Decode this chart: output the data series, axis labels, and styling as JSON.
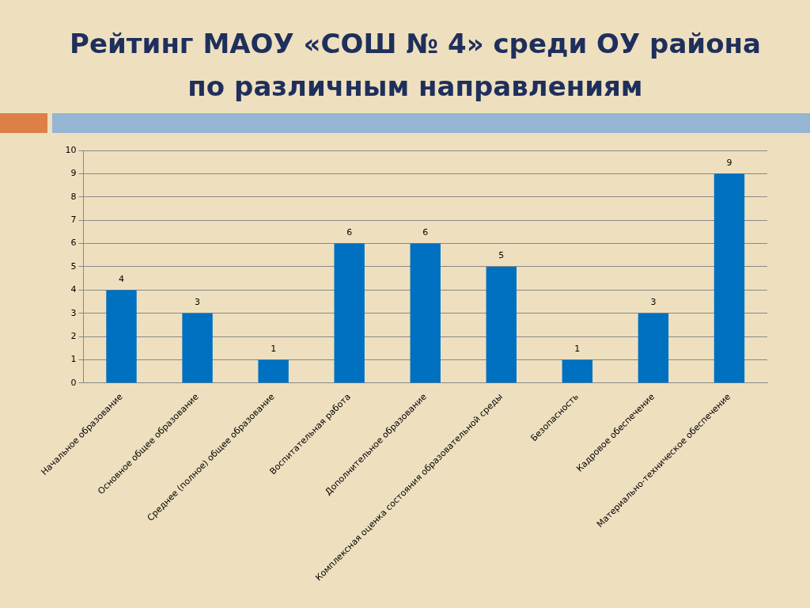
{
  "chart_data": {
    "type": "bar",
    "title": "Рейтинг МАОУ «СОШ № 4» среди ОУ района по различным направлениям",
    "categories": [
      "Начальное образование",
      "Основное общее образование",
      "Среднее (полное) общее образование",
      "Воспитательная работа",
      "Дополнительное образование",
      "Комплексная оценка состояния образовательной среды",
      "Безопасность",
      "Кадровое обеспечение",
      "Материально-техническое обеспечение"
    ],
    "values": [
      4,
      3,
      1,
      6,
      6,
      5,
      1,
      3,
      9
    ],
    "color": "#0070c0",
    "ylim": [
      0,
      10
    ],
    "yticks": [
      0,
      1,
      2,
      3,
      4,
      5,
      6,
      7,
      8,
      9,
      10
    ],
    "grid": "y",
    "data_labels": true,
    "legend": false
  }
}
